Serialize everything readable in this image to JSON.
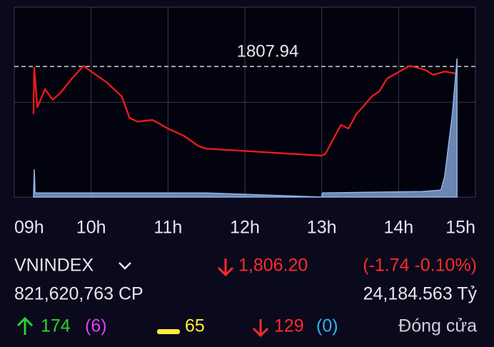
{
  "chart_data": {
    "type": "line",
    "reference": {
      "value": 1807.94,
      "color": "#cfcfd8"
    },
    "xlim": [
      9,
      15
    ],
    "ylim": [
      1776.1,
      1822.4
    ],
    "vlim": [
      0,
      100
    ],
    "xticks": [
      {
        "value": 9,
        "label": "09h"
      },
      {
        "value": 10,
        "label": "10h"
      },
      {
        "value": 11,
        "label": "11h"
      },
      {
        "value": 12,
        "label": "12h"
      },
      {
        "value": 13,
        "label": "13h"
      },
      {
        "value": 14,
        "label": "14h"
      },
      {
        "value": 15,
        "label": "15h"
      }
    ],
    "yticks": [
      1822.4,
      1799.2,
      1776.1
    ],
    "series": [
      {
        "name": "VNINDEX",
        "color": "#ff1a1a",
        "x": [
          9.25,
          9.26,
          9.3,
          9.4,
          9.5,
          9.6,
          9.75,
          9.9,
          10.0,
          10.2,
          10.4,
          10.5,
          10.6,
          10.8,
          11.0,
          11.2,
          11.4,
          11.5,
          13.0,
          13.05,
          13.15,
          13.25,
          13.35,
          13.45,
          13.55,
          13.65,
          13.75,
          13.85,
          14.05,
          14.15,
          14.35,
          14.45,
          14.6,
          14.75
        ],
        "values": [
          1796.3,
          1807.6,
          1798.0,
          1802.4,
          1799.8,
          1801.5,
          1805.0,
          1808.1,
          1806.7,
          1804.1,
          1800.6,
          1795.4,
          1794.5,
          1794.9,
          1792.8,
          1791.1,
          1788.5,
          1787.9,
          1786.2,
          1786.7,
          1790.2,
          1793.7,
          1792.8,
          1796.3,
          1798.4,
          1800.6,
          1801.9,
          1805.0,
          1807.1,
          1808.1,
          1807.1,
          1805.9,
          1806.7,
          1806.2
        ]
      },
      {
        "name": "Volume",
        "color": "#8fb3e8",
        "axis": "v",
        "x": [
          9.25,
          9.26,
          9.27,
          11.5,
          13.0,
          13.01,
          14.3,
          14.55,
          14.6,
          14.7,
          14.76
        ],
        "values": [
          0,
          20,
          3,
          3,
          0,
          3,
          4,
          5,
          15,
          60,
          100
        ]
      }
    ]
  },
  "info": {
    "index": "VNINDEX",
    "price": "1,806.20",
    "change": "(-1.74 -0.10%)",
    "volume": "821,620,763 CP",
    "value": "24,184.563 Tỷ",
    "up": "174",
    "ceiling": "(6)",
    "unchanged": "65",
    "down": "129",
    "floor": "(0)",
    "status": "Đóng cửa"
  }
}
